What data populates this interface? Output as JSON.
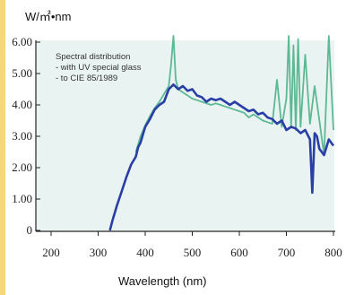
{
  "chart_data": {
    "type": "line",
    "title": "",
    "ylabel": "W/㎡•nm",
    "xlabel": "Wavelength (nm)",
    "xlim": [
      200,
      800
    ],
    "ylim": [
      0,
      6
    ],
    "x_ticks": [
      "200",
      "300",
      "400",
      "500",
      "600",
      "700",
      "800"
    ],
    "y_ticks": [
      "0",
      "1.00",
      "2.00",
      "3.00",
      "4.00",
      "5.00",
      "6.00"
    ],
    "annotation": [
      "Spectral distribution",
      "- with UV special  glass",
      "- to CIE 85/1989"
    ],
    "grid": false,
    "plot_background": "#e9f3f1",
    "series": [
      {
        "color": "#5db894",
        "x": [
          380,
          390,
          400,
          410,
          420,
          430,
          440,
          450,
          455,
          460,
          465,
          470,
          480,
          490,
          500,
          510,
          520,
          530,
          540,
          550,
          560,
          570,
          580,
          590,
          600,
          610,
          620,
          630,
          640,
          650,
          660,
          670,
          680,
          690,
          700,
          705,
          710,
          715,
          720,
          725,
          730,
          740,
          750,
          760,
          770,
          780,
          790,
          800
        ],
        "y": [
          2.5,
          3.0,
          3.35,
          3.65,
          3.9,
          4.1,
          4.35,
          4.6,
          5.3,
          6.2,
          4.8,
          4.5,
          4.4,
          4.3,
          4.2,
          4.15,
          4.1,
          4.05,
          4.0,
          4.05,
          4.0,
          3.95,
          3.9,
          3.85,
          3.8,
          3.75,
          3.6,
          3.7,
          3.6,
          3.5,
          3.45,
          3.4,
          4.8,
          3.3,
          4.2,
          6.2,
          3.3,
          5.9,
          3.2,
          6.1,
          3.3,
          5.6,
          3.4,
          4.6,
          3.5,
          2.4,
          6.2,
          3.2
        ]
      },
      {
        "color": "#2a3fa5",
        "x": [
          325,
          330,
          340,
          350,
          360,
          370,
          380,
          385,
          390,
          395,
          400,
          410,
          420,
          430,
          440,
          450,
          460,
          470,
          480,
          490,
          500,
          510,
          520,
          530,
          540,
          550,
          560,
          570,
          580,
          590,
          600,
          610,
          620,
          630,
          640,
          650,
          660,
          670,
          680,
          690,
          700,
          710,
          720,
          730,
          740,
          750,
          755,
          760,
          765,
          770,
          780,
          790,
          800
        ],
        "y": [
          0,
          0.3,
          0.8,
          1.25,
          1.7,
          2.1,
          2.35,
          2.65,
          2.8,
          3.05,
          3.3,
          3.55,
          3.85,
          4.0,
          4.1,
          4.5,
          4.65,
          4.5,
          4.6,
          4.45,
          4.5,
          4.3,
          4.25,
          4.1,
          4.2,
          4.15,
          4.2,
          4.1,
          4.0,
          4.1,
          4.0,
          3.9,
          3.8,
          3.85,
          3.7,
          3.75,
          3.6,
          3.55,
          3.4,
          3.5,
          3.2,
          3.3,
          3.25,
          3.1,
          3.2,
          2.9,
          1.2,
          3.1,
          3.0,
          2.6,
          2.4,
          2.9,
          2.7
        ]
      }
    ]
  }
}
